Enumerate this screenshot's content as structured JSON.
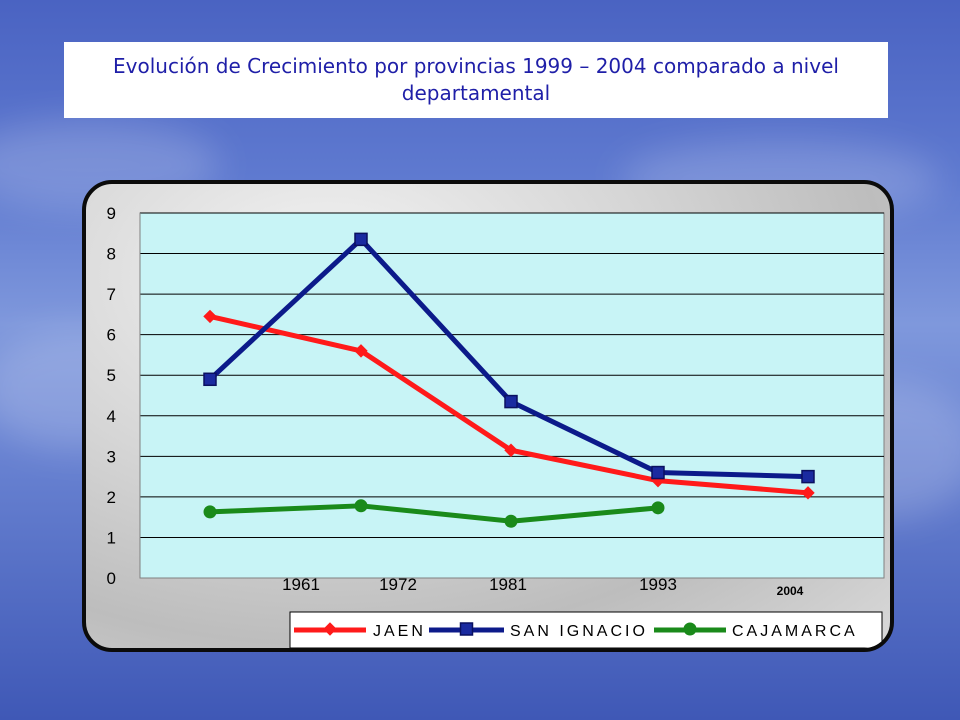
{
  "slide": {
    "title": "Evolución de Crecimiento por provincias 1999 – 2004 comparado a nivel departamental"
  },
  "colors": {
    "plot_bg": "#c8f4f6",
    "grid": "#000000",
    "jaen": "#ff1a1a",
    "san_ignacio": "#0c1a8a",
    "cajamarca": "#1a8a1a"
  },
  "chart_data": {
    "type": "line",
    "title": "",
    "xlabel": "",
    "ylabel": "",
    "ylim": [
      0,
      9
    ],
    "yticks": [
      "0",
      "1",
      "2",
      "3",
      "4",
      "5",
      "6",
      "7",
      "8",
      "9"
    ],
    "x_tick_labels": [
      "1961",
      "1972",
      "1981",
      "1993"
    ],
    "extra_x_label": "2004",
    "grid": true,
    "legend_position": "bottom",
    "series": [
      {
        "name": "JAEN",
        "values": [
          6.45,
          5.6,
          3.15,
          2.4,
          2.1
        ],
        "marker": "diamond",
        "color_key": "jaen"
      },
      {
        "name": "SAN IGNACIO",
        "values": [
          4.9,
          8.35,
          4.35,
          2.6,
          2.5
        ],
        "marker": "square",
        "color_key": "san_ignacio"
      },
      {
        "name": "CAJAMARCA",
        "values": [
          1.63,
          1.78,
          1.4,
          1.73,
          null
        ],
        "marker": "circle",
        "color_key": "cajamarca"
      }
    ]
  }
}
